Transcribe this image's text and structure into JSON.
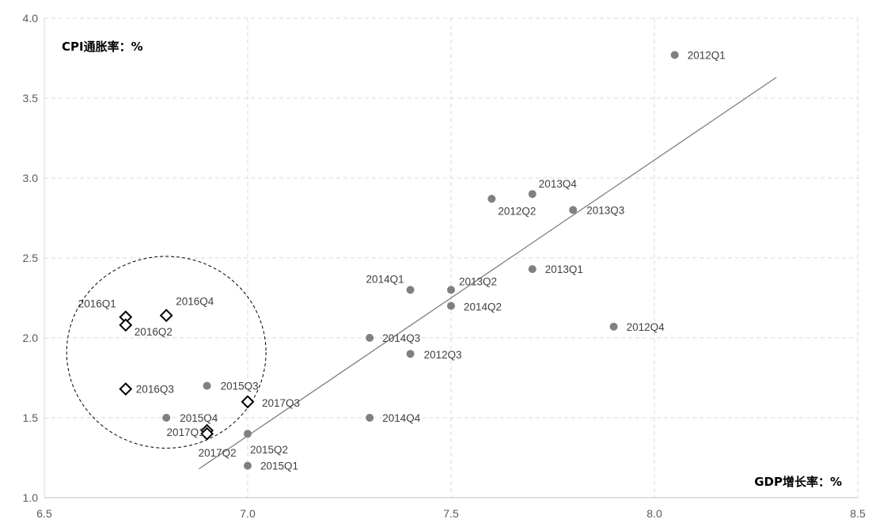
{
  "chart_data": {
    "type": "scatter",
    "xlabel": "GDP增长率：%",
    "ylabel": "CPI通胀率：%",
    "xlim": [
      6.5,
      8.5
    ],
    "ylim": [
      1.0,
      4.0
    ],
    "x_ticks": [
      "6.5",
      "7.0",
      "7.5",
      "8.0",
      "8.5"
    ],
    "y_ticks": [
      "1.0",
      "1.5",
      "2.0",
      "2.5",
      "3.0",
      "3.5",
      "4.0"
    ],
    "grid": true,
    "series": [
      {
        "marker": "circle",
        "color": "#808080",
        "points": [
          {
            "label": "2012Q1",
            "x": 8.05,
            "y": 3.77
          },
          {
            "label": "2012Q2",
            "x": 7.6,
            "y": 2.87
          },
          {
            "label": "2012Q3",
            "x": 7.4,
            "y": 1.9
          },
          {
            "label": "2012Q4",
            "x": 7.9,
            "y": 2.07
          },
          {
            "label": "2013Q1",
            "x": 7.7,
            "y": 2.43
          },
          {
            "label": "2013Q2",
            "x": 7.5,
            "y": 2.3
          },
          {
            "label": "2013Q3",
            "x": 7.8,
            "y": 2.8
          },
          {
            "label": "2013Q4",
            "x": 7.7,
            "y": 2.9
          },
          {
            "label": "2014Q1",
            "x": 7.4,
            "y": 2.3
          },
          {
            "label": "2014Q2",
            "x": 7.5,
            "y": 2.2
          },
          {
            "label": "2014Q3",
            "x": 7.3,
            "y": 2.0
          },
          {
            "label": "2014Q4",
            "x": 7.3,
            "y": 1.5
          },
          {
            "label": "2015Q1",
            "x": 7.0,
            "y": 1.2
          },
          {
            "label": "2015Q2",
            "x": 7.0,
            "y": 1.4
          },
          {
            "label": "2015Q3",
            "x": 6.9,
            "y": 1.7
          },
          {
            "label": "2015Q4",
            "x": 6.8,
            "y": 1.5
          }
        ]
      },
      {
        "marker": "diamond-open",
        "color": "#000000",
        "points": [
          {
            "label": "2016Q1",
            "x": 6.7,
            "y": 2.13
          },
          {
            "label": "2016Q2",
            "x": 6.7,
            "y": 2.08
          },
          {
            "label": "2016Q3",
            "x": 6.7,
            "y": 1.68
          },
          {
            "label": "2016Q4",
            "x": 6.8,
            "y": 2.14
          },
          {
            "label": "2017Q1",
            "x": 6.9,
            "y": 1.42
          },
          {
            "label": "2017Q2",
            "x": 6.9,
            "y": 1.4
          },
          {
            "label": "2017Q3",
            "x": 7.0,
            "y": 1.6
          }
        ]
      }
    ],
    "trendline": {
      "color": "#808080",
      "x": [
        6.88,
        8.3
      ],
      "y": [
        1.18,
        3.63
      ]
    },
    "annotation_circle": {
      "cx": 6.8,
      "cy": 1.91,
      "rx": 0.245,
      "ry": 0.6,
      "style": "dashed"
    }
  }
}
